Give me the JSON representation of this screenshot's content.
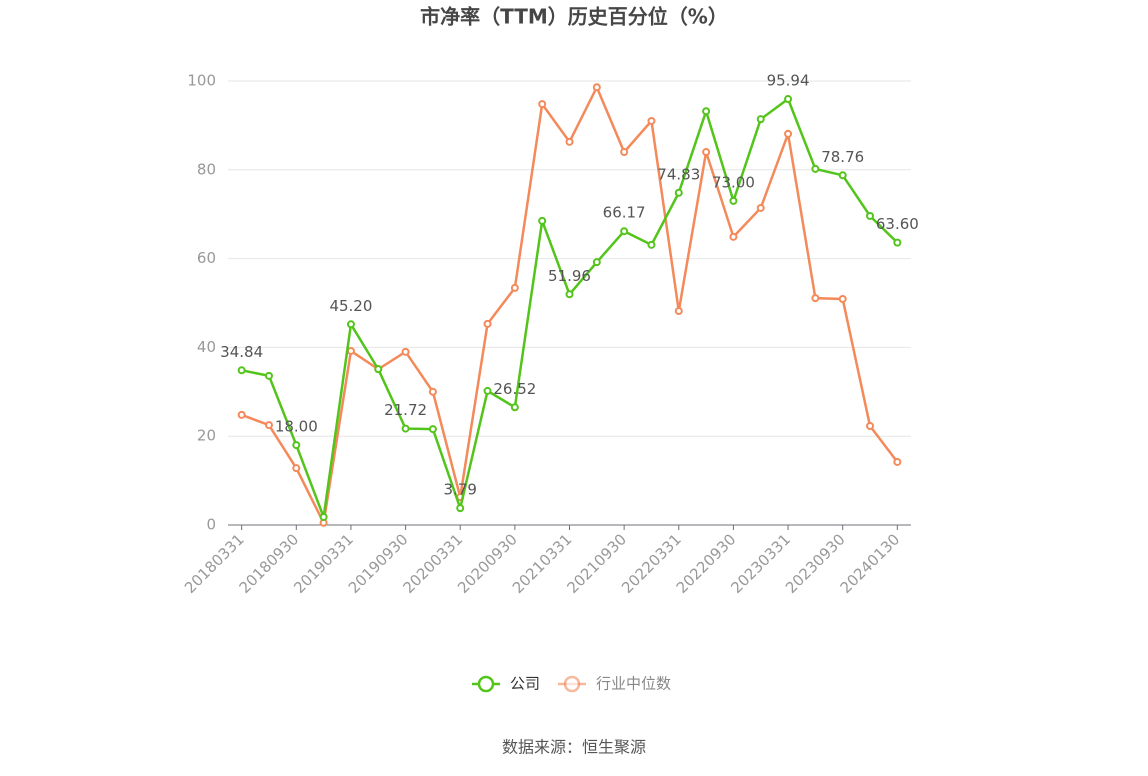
{
  "chart_data": {
    "type": "line",
    "title": "市净率（TTM）历史百分位（%）",
    "source": "数据来源：恒生聚源",
    "categories": [
      "20180331",
      null,
      "20180930",
      null,
      "20190331",
      null,
      "20190930",
      null,
      "20200331",
      null,
      "20200930",
      null,
      "20210331",
      null,
      "20210930",
      null,
      "20220331",
      null,
      "20220930",
      null,
      "20230331",
      null,
      "20230930",
      null,
      "20240130"
    ],
    "series": [
      {
        "name": "公司",
        "color": "#52c41a",
        "values": [
          34.84,
          33.6,
          18.0,
          1.8,
          45.2,
          35.1,
          21.72,
          21.6,
          3.79,
          30.2,
          26.52,
          68.5,
          51.96,
          59.2,
          66.17,
          63.1,
          74.83,
          93.2,
          73.0,
          91.4,
          95.94,
          80.2,
          78.76,
          69.6,
          63.6
        ],
        "value_labels": [
          "34.84",
          null,
          "18.00",
          null,
          "45.20",
          null,
          "21.72",
          null,
          "3.79",
          null,
          "26.52",
          null,
          "51.96",
          null,
          "66.17",
          null,
          "74.83",
          null,
          "73.00",
          null,
          "95.94",
          null,
          "78.76",
          null,
          "63.60"
        ]
      },
      {
        "name": "行业中位数",
        "color": "#f4895a",
        "values": [
          24.8,
          22.5,
          12.8,
          0.5,
          39.2,
          35.1,
          39.0,
          30.0,
          6.3,
          45.3,
          53.4,
          94.8,
          86.3,
          98.6,
          84.0,
          91.0,
          48.2,
          84.0,
          64.9,
          71.4,
          88.1,
          51.1,
          50.9,
          22.3,
          14.2
        ]
      }
    ],
    "ylim": [
      0,
      100
    ],
    "yticks": [
      0,
      20,
      40,
      60,
      80,
      100
    ],
    "grid": true
  }
}
